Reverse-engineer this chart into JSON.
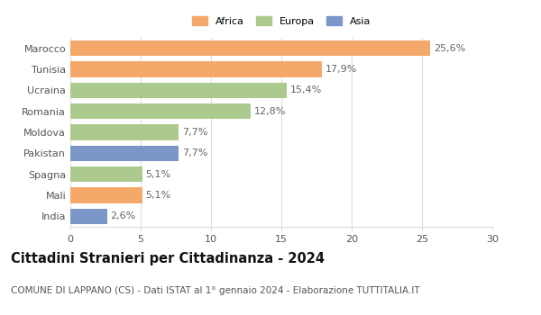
{
  "categories": [
    "Marocco",
    "Tunisia",
    "Ucraina",
    "Romania",
    "Moldova",
    "Pakistan",
    "Spagna",
    "Mali",
    "India"
  ],
  "values": [
    25.6,
    17.9,
    15.4,
    12.8,
    7.7,
    7.7,
    5.1,
    5.1,
    2.6
  ],
  "labels": [
    "25,6%",
    "17,9%",
    "15,4%",
    "12,8%",
    "7,7%",
    "7,7%",
    "5,1%",
    "5,1%",
    "2,6%"
  ],
  "colors": [
    "#F4A96A",
    "#F4A96A",
    "#ADCA8E",
    "#ADCA8E",
    "#ADCA8E",
    "#7B96C8",
    "#ADCA8E",
    "#F4A96A",
    "#7B96C8"
  ],
  "legend_labels": [
    "Africa",
    "Europa",
    "Asia"
  ],
  "legend_colors": [
    "#F4A96A",
    "#ADCA8E",
    "#7B96C8"
  ],
  "title": "Cittadini Stranieri per Cittadinanza - 2024",
  "subtitle": "COMUNE DI LAPPANO (CS) - Dati ISTAT al 1° gennaio 2024 - Elaborazione TUTTITALIA.IT",
  "xlim": [
    0,
    30
  ],
  "xticks": [
    0,
    5,
    10,
    15,
    20,
    25,
    30
  ],
  "bar_height": 0.75,
  "bg_color": "#ffffff",
  "grid_color": "#dddddd",
  "label_fontsize": 8,
  "tick_fontsize": 8,
  "title_fontsize": 10.5,
  "subtitle_fontsize": 7.5
}
